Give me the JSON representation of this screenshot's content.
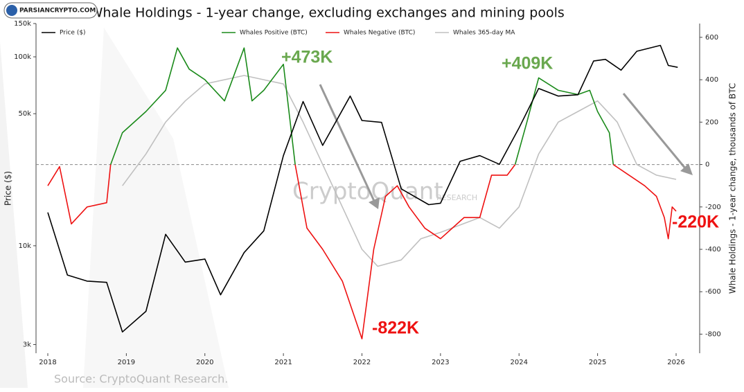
{
  "chart_data": {
    "type": "line",
    "title": "Bitcoin: Whale Holdings - 1-year change, excluding exchanges and mining pools",
    "logo_text": "PARSIANCRYPTO.COM",
    "watermark": "CryptoQuant",
    "watermark_sub": "RESEARCH",
    "source": "Source: CryptoQuant Research.",
    "y_label": "Price ($)",
    "y2_label": "Whale Holdings - 1-year change, thousands of BTC",
    "log_y": true,
    "xlim": [
      2017.85,
      2026.3
    ],
    "xticks": [
      2018,
      2019,
      2020,
      2021,
      2022,
      2023,
      2024,
      2025,
      2026
    ],
    "ylim": [
      2700,
      150000
    ],
    "yticks": [
      {
        "value": 3000,
        "label": "3k"
      },
      {
        "value": 10000,
        "label": "10k"
      },
      {
        "value": 50000,
        "label": "50k"
      },
      {
        "value": 100000,
        "label": "100k"
      },
      {
        "value": 150000,
        "label": "150k"
      }
    ],
    "y2lim": [
      -890,
      665
    ],
    "y2ticks": [
      -800,
      -600,
      -400,
      -200,
      0,
      200,
      400,
      600
    ],
    "series": [
      {
        "name": "Price ($)",
        "color": "#000000",
        "axis": "y",
        "x": [
          2018.0,
          2018.25,
          2018.5,
          2018.75,
          2018.95,
          2019.25,
          2019.5,
          2019.75,
          2020.0,
          2020.2,
          2020.5,
          2020.75,
          2021.0,
          2021.25,
          2021.5,
          2021.85,
          2022.0,
          2022.25,
          2022.5,
          2022.85,
          2023.0,
          2023.25,
          2023.5,
          2023.75,
          2024.0,
          2024.25,
          2024.5,
          2024.75,
          2024.95,
          2025.1,
          2025.3,
          2025.5,
          2025.8,
          2025.9,
          2026.02
        ],
        "values": [
          15000,
          7000,
          6500,
          6400,
          3500,
          4500,
          11500,
          8200,
          8500,
          5500,
          9200,
          12000,
          30000,
          58000,
          34000,
          62000,
          46000,
          45000,
          20000,
          16500,
          16800,
          28000,
          30000,
          27000,
          42000,
          68000,
          62000,
          63000,
          95000,
          97000,
          85000,
          107000,
          115000,
          90000,
          88000
        ]
      },
      {
        "name": "Whales Positive (BTC)",
        "color": "#1a8a1a",
        "axis": "y2",
        "x": [
          2018.0,
          2018.15,
          2018.3,
          2018.5,
          2018.75,
          2018.8,
          2018.95,
          2019.25,
          2019.5,
          2019.65,
          2019.8,
          2020.0,
          2020.25,
          2020.5,
          2020.6,
          2020.75,
          2021.0,
          2021.15,
          2021.3,
          2021.5,
          2021.75,
          2022.0,
          2022.15,
          2022.3,
          2022.45,
          2022.6,
          2022.8,
          2023.0,
          2023.3,
          2023.5,
          2023.65,
          2023.85,
          2023.95,
          2024.1,
          2024.25,
          2024.5,
          2024.75,
          2024.9,
          2025.0,
          2025.15,
          2025.2,
          2025.4,
          2025.6,
          2025.75,
          2025.85,
          2025.9,
          2025.95,
          2026.0
        ],
        "values": [
          null,
          null,
          null,
          null,
          null,
          0,
          150,
          250,
          350,
          550,
          450,
          400,
          300,
          550,
          300,
          350,
          473,
          0,
          null,
          null,
          null,
          null,
          null,
          null,
          null,
          null,
          null,
          null,
          null,
          null,
          null,
          null,
          0,
          200,
          409,
          350,
          330,
          350,
          250,
          150,
          0,
          null,
          null,
          null,
          null,
          null,
          null,
          null
        ]
      },
      {
        "name": "Whales Negative (BTC)",
        "color": "#ee1111",
        "axis": "y2",
        "x": [
          2018.0,
          2018.15,
          2018.3,
          2018.5,
          2018.75,
          2018.8,
          2018.95,
          2019.25,
          2019.5,
          2019.65,
          2019.8,
          2020.0,
          2020.25,
          2020.5,
          2020.6,
          2020.75,
          2021.0,
          2021.15,
          2021.3,
          2021.5,
          2021.75,
          2022.0,
          2022.15,
          2022.3,
          2022.45,
          2022.6,
          2022.8,
          2023.0,
          2023.3,
          2023.5,
          2023.65,
          2023.85,
          2023.95,
          2024.1,
          2024.25,
          2024.5,
          2024.75,
          2024.9,
          2025.0,
          2025.15,
          2025.2,
          2025.4,
          2025.6,
          2025.75,
          2025.85,
          2025.9,
          2025.95,
          2026.0
        ],
        "values": [
          -100,
          -10,
          -280,
          -200,
          -180,
          0,
          null,
          null,
          null,
          null,
          null,
          null,
          null,
          null,
          null,
          null,
          null,
          0,
          -300,
          -400,
          -550,
          -822,
          -400,
          -150,
          -100,
          -200,
          -300,
          -350,
          -250,
          -250,
          -50,
          -50,
          0,
          null,
          null,
          null,
          null,
          null,
          null,
          null,
          0,
          -50,
          -100,
          -150,
          -250,
          -350,
          -200,
          -220
        ]
      },
      {
        "name": "Whales 365-day MA",
        "color": "#c0c0c0",
        "axis": "y2",
        "x": [
          2018.95,
          2019.25,
          2019.5,
          2019.75,
          2020.0,
          2020.5,
          2020.75,
          2021.0,
          2021.25,
          2021.5,
          2021.75,
          2022.0,
          2022.2,
          2022.5,
          2022.75,
          2023.0,
          2023.5,
          2023.75,
          2024.0,
          2024.25,
          2024.5,
          2024.75,
          2025.0,
          2025.25,
          2025.5,
          2025.75,
          2026.0
        ],
        "values": [
          -100,
          50,
          200,
          300,
          380,
          420,
          400,
          380,
          200,
          0,
          -200,
          -400,
          -480,
          -450,
          -350,
          -320,
          -250,
          -300,
          -200,
          50,
          200,
          250,
          300,
          200,
          0,
          -50,
          -70
        ]
      }
    ],
    "annotations": [
      {
        "text": "+473K",
        "color": "#6aa84f"
      },
      {
        "text": "+409K",
        "color": "#6aa84f"
      },
      {
        "text": "-822K",
        "color": "#ee1111"
      },
      {
        "text": "-220K",
        "color": "#ee1111"
      }
    ]
  }
}
